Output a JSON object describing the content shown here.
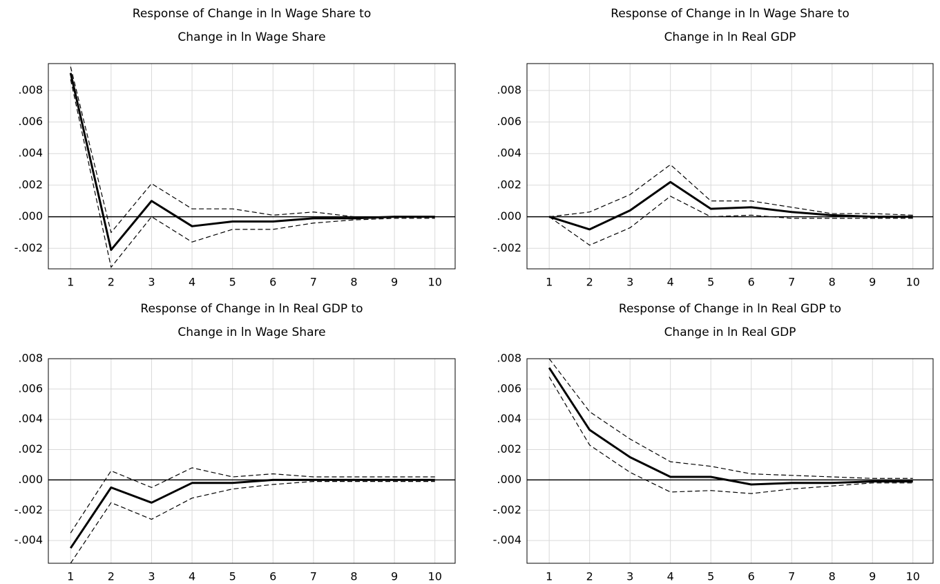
{
  "chart_data": [
    {
      "type": "line",
      "title": [
        "Response of Change in ln Wage Share to",
        "Change in ln Wage Share"
      ],
      "x": [
        1,
        2,
        3,
        4,
        5,
        6,
        7,
        8,
        9,
        10
      ],
      "xlim": [
        0.45,
        10.5
      ],
      "xticks": [
        1,
        2,
        3,
        4,
        5,
        6,
        7,
        8,
        9,
        10
      ],
      "ylim": [
        -0.0033,
        0.0097
      ],
      "yticks": [
        {
          "value": 0.008,
          "label": ".008"
        },
        {
          "value": 0.006,
          "label": ".006"
        },
        {
          "value": 0.004,
          "label": ".004"
        },
        {
          "value": 0.002,
          "label": ".002"
        },
        {
          "value": 0,
          "label": ".000"
        },
        {
          "value": -0.002,
          "label": "-.002"
        }
      ],
      "grid": true,
      "series": [
        {
          "color": "#000000",
          "dashed": false,
          "values": [
            0.0091,
            -0.0021,
            0.001,
            -0.0006,
            -0.0003,
            -0.0003,
            -0.0001,
            -0.0001,
            0.0,
            0.0
          ]
        },
        {
          "color": "#000000",
          "dashed": true,
          "values": [
            0.0095,
            -0.001,
            0.0021,
            0.0005,
            0.0005,
            0.0001,
            0.0003,
            0.0,
            0.0,
            0.0
          ]
        },
        {
          "color": "#000000",
          "dashed": true,
          "values": [
            0.0087,
            -0.0032,
            0.0,
            -0.0016,
            -0.0008,
            -0.0008,
            -0.0004,
            -0.0002,
            -0.0001,
            -0.0001
          ]
        }
      ]
    },
    {
      "type": "line",
      "title": [
        "Response of Change in ln Wage Share to",
        "Change in ln Real GDP"
      ],
      "x": [
        1,
        2,
        3,
        4,
        5,
        6,
        7,
        8,
        9,
        10
      ],
      "xlim": [
        0.45,
        10.5
      ],
      "xticks": [
        1,
        2,
        3,
        4,
        5,
        6,
        7,
        8,
        9,
        10
      ],
      "ylim": [
        -0.0033,
        0.0097
      ],
      "yticks": [
        {
          "value": 0.008,
          "label": ".008"
        },
        {
          "value": 0.006,
          "label": ".006"
        },
        {
          "value": 0.004,
          "label": ".004"
        },
        {
          "value": 0.002,
          "label": ".002"
        },
        {
          "value": 0,
          "label": ".000"
        },
        {
          "value": -0.002,
          "label": "-.002"
        }
      ],
      "grid": true,
      "series": [
        {
          "color": "#000000",
          "dashed": false,
          "values": [
            0.0,
            -0.0008,
            0.0004,
            0.0022,
            0.0005,
            0.0006,
            0.0003,
            0.0001,
            0.0,
            0.0
          ]
        },
        {
          "color": "#000000",
          "dashed": true,
          "values": [
            0.0,
            0.0003,
            0.0014,
            0.0033,
            0.001,
            0.001,
            0.0006,
            0.0002,
            0.0002,
            0.0001
          ]
        },
        {
          "color": "#000000",
          "dashed": true,
          "values": [
            0.0,
            -0.0018,
            -0.0007,
            0.0013,
            0.0,
            0.0001,
            -0.0001,
            -0.0001,
            -0.0001,
            -0.0001
          ]
        }
      ]
    },
    {
      "type": "line",
      "title": [
        "Response of Change in ln Real GDP to",
        "Change in ln Wage Share"
      ],
      "x": [
        1,
        2,
        3,
        4,
        5,
        6,
        7,
        8,
        9,
        10
      ],
      "xlim": [
        0.45,
        10.5
      ],
      "xticks": [
        1,
        2,
        3,
        4,
        5,
        6,
        7,
        8,
        9,
        10
      ],
      "ylim": [
        -0.0055,
        0.008
      ],
      "yticks": [
        {
          "value": 0.008,
          "label": ".008"
        },
        {
          "value": 0.006,
          "label": ".006"
        },
        {
          "value": 0.004,
          "label": ".004"
        },
        {
          "value": 0.002,
          "label": ".002"
        },
        {
          "value": 0,
          "label": ".000"
        },
        {
          "value": -0.002,
          "label": "-.002"
        },
        {
          "value": -0.004,
          "label": "-.004"
        }
      ],
      "grid": true,
      "series": [
        {
          "color": "#000000",
          "dashed": false,
          "values": [
            -0.0045,
            -0.0005,
            -0.0015,
            -0.0002,
            -0.0002,
            0.0,
            0.0,
            0.0,
            0.0,
            0.0
          ]
        },
        {
          "color": "#000000",
          "dashed": true,
          "values": [
            -0.0035,
            0.0006,
            -0.0005,
            0.0008,
            0.0002,
            0.0004,
            0.0002,
            0.0002,
            0.0002,
            0.0002
          ]
        },
        {
          "color": "#000000",
          "dashed": true,
          "values": [
            -0.0055,
            -0.0015,
            -0.0026,
            -0.0012,
            -0.0006,
            -0.0003,
            -0.0001,
            -0.0001,
            -0.0001,
            -0.0001
          ]
        }
      ]
    },
    {
      "type": "line",
      "title": [
        "Response of Change in ln Real GDP to",
        "Change in ln Real GDP"
      ],
      "x": [
        1,
        2,
        3,
        4,
        5,
        6,
        7,
        8,
        9,
        10
      ],
      "xlim": [
        0.45,
        10.5
      ],
      "xticks": [
        1,
        2,
        3,
        4,
        5,
        6,
        7,
        8,
        9,
        10
      ],
      "ylim": [
        -0.0055,
        0.008
      ],
      "yticks": [
        {
          "value": 0.008,
          "label": ".008"
        },
        {
          "value": 0.006,
          "label": ".006"
        },
        {
          "value": 0.004,
          "label": ".004"
        },
        {
          "value": 0.002,
          "label": ".002"
        },
        {
          "value": 0,
          "label": ".000"
        },
        {
          "value": -0.002,
          "label": "-.002"
        },
        {
          "value": -0.004,
          "label": "-.004"
        }
      ],
      "grid": true,
      "series": [
        {
          "color": "#000000",
          "dashed": false,
          "values": [
            0.0074,
            0.0033,
            0.0015,
            0.0002,
            0.0002,
            -0.0003,
            -0.0002,
            -0.0002,
            -0.0001,
            -0.0001
          ]
        },
        {
          "color": "#000000",
          "dashed": true,
          "values": [
            0.008,
            0.0045,
            0.0027,
            0.0012,
            0.0009,
            0.0004,
            0.0003,
            0.0002,
            0.0001,
            0.0001
          ]
        },
        {
          "color": "#000000",
          "dashed": true,
          "values": [
            0.0068,
            0.0023,
            0.0005,
            -0.0008,
            -0.0007,
            -0.0009,
            -0.0006,
            -0.0004,
            -0.0002,
            -0.0002
          ]
        }
      ]
    }
  ]
}
